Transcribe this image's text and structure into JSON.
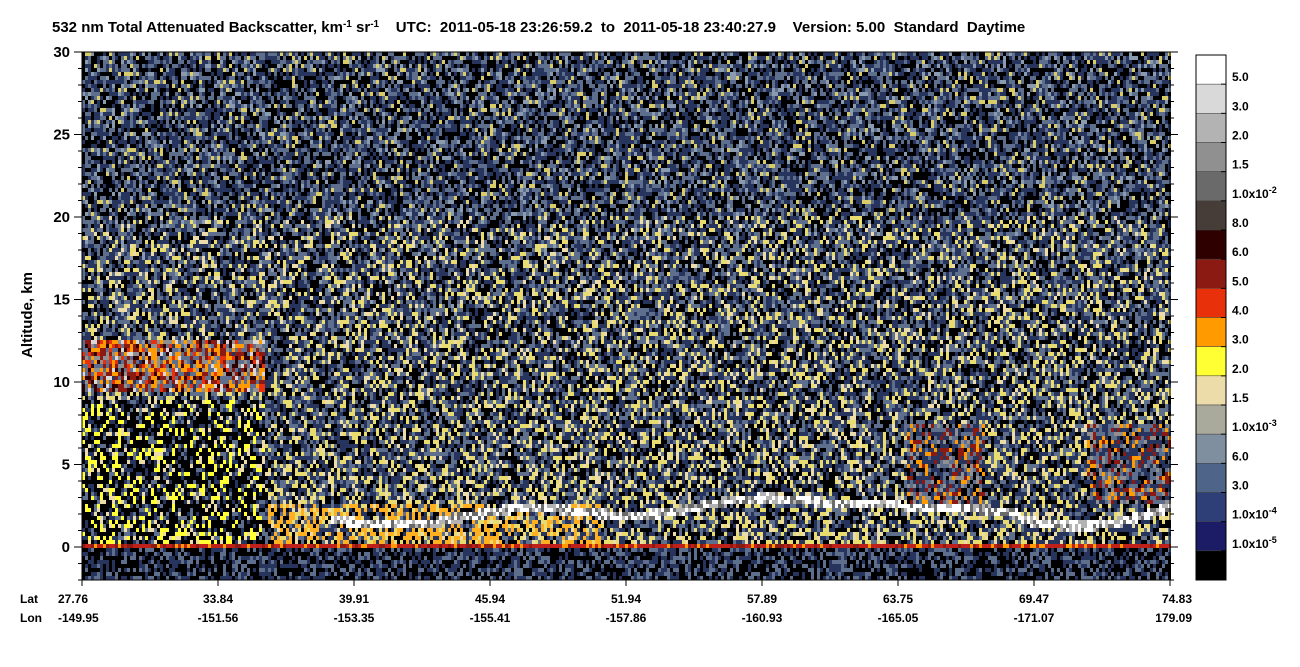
{
  "chart_data": {
    "type": "heatmap",
    "title": [
      "532 nm Total Attenuated Backscatter, km",
      "-1",
      " sr",
      "-1",
      "    UTC:  2011-05-18 23:26:59.2  to  2011-05-18 23:40:27.9    Version: 5.00  Standard  Daytime"
    ],
    "ylabel": "Altitude, km",
    "ylim": [
      -2,
      30
    ],
    "yticks": [
      0,
      5,
      10,
      15,
      20,
      25,
      30
    ],
    "x_row_labels": [
      "Lat",
      "Lon"
    ],
    "lat": [
      27.76,
      33.84,
      39.91,
      45.94,
      51.94,
      57.89,
      63.75,
      69.47,
      74.83
    ],
    "lon": [
      -149.95,
      -151.56,
      -153.35,
      -155.41,
      -157.86,
      -160.93,
      -165.05,
      -171.07,
      179.09
    ],
    "colorbar": {
      "colors": [
        "#ffffff",
        "#d9d9d9",
        "#b3b3b3",
        "#909090",
        "#6a6a6a",
        "#463c38",
        "#2e0000",
        "#8b1a12",
        "#e8300a",
        "#ff9a00",
        "#ffff33",
        "#ecdcaa",
        "#a9a99c",
        "#7f8fa0",
        "#4e6488",
        "#2e3f78",
        "#1c1c66",
        "#000000"
      ],
      "labels": [
        "5.0",
        "3.0",
        "2.0",
        "1.5",
        {
          "base": "1.0x10",
          "exp": "-2"
        },
        "8.0",
        "6.0",
        "5.0",
        "4.0",
        "3.0",
        "2.0",
        "1.5",
        {
          "base": "1.0x10",
          "exp": "-3"
        },
        "6.0",
        "3.0",
        {
          "base": "1.0x10",
          "exp": "-4"
        },
        {
          "base": "1.0x10",
          "exp": "-5"
        }
      ]
    }
  }
}
